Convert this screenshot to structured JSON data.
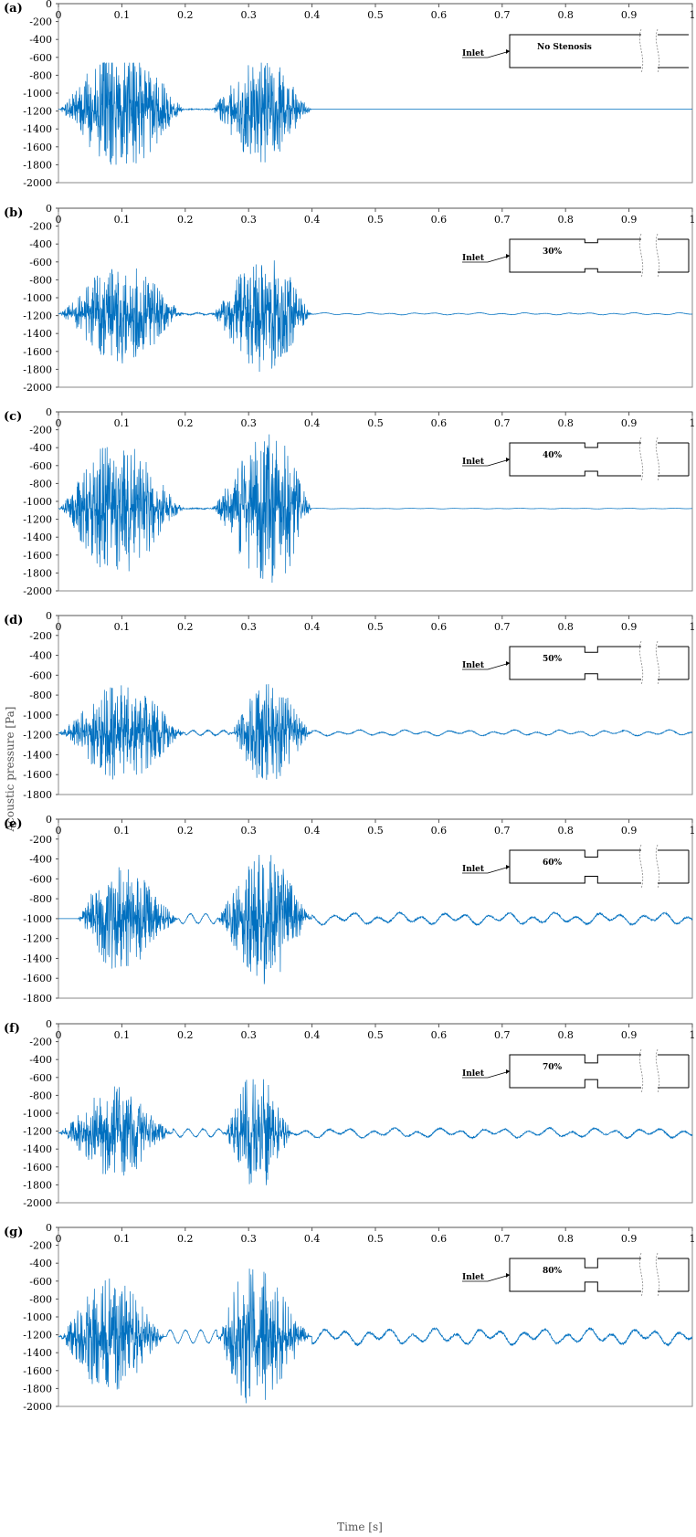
{
  "figure": {
    "xlabel": "Time [s]",
    "ylabel": "Acoustic pressure [Pa]",
    "inlet_label": "Inlet"
  },
  "chart_data": [
    {
      "type": "line",
      "panel_label": "(a)",
      "inset_label": "No Stenosis",
      "stenosis": 0,
      "xlim": [
        0,
        1
      ],
      "ylim": [
        -2000,
        0
      ],
      "x_ticks": [
        "0",
        "0.1",
        "0.2",
        "0.3",
        "0.4",
        "0.5",
        "0.6",
        "0.7",
        "0.8",
        "0.9",
        "1"
      ],
      "y_ticks": [
        "0",
        "-200",
        "-400",
        "-600",
        "-800",
        "-1000",
        "-1200",
        "-1400",
        "-1600",
        "-1800",
        "-2000"
      ],
      "baseline": -1180,
      "burst1": {
        "x": [
          0,
          0.2
        ],
        "peak_x": 0.1,
        "max_amplitude": 700
      },
      "burst2": {
        "x": [
          0.24,
          0.4
        ],
        "peak_x": 0.32,
        "max_amplitude": 600
      },
      "tail": {
        "x": [
          0.4,
          1.0
        ],
        "amplitude": 0
      },
      "extremes": {
        "min": -1900,
        "max": -660
      },
      "grid": false,
      "line_color": "#0070c0"
    },
    {
      "type": "line",
      "panel_label": "(b)",
      "inset_label": "30%",
      "stenosis": 30,
      "xlim": [
        0,
        1
      ],
      "ylim": [
        -2000,
        0
      ],
      "x_ticks": [
        "0",
        "0.1",
        "0.2",
        "0.3",
        "0.4",
        "0.5",
        "0.6",
        "0.7",
        "0.8",
        "0.9",
        "1"
      ],
      "y_ticks": [
        "0",
        "-200",
        "-400",
        "-600",
        "-800",
        "-1000",
        "-1200",
        "-1400",
        "-1600",
        "-1800",
        "-2000"
      ],
      "baseline": -1180,
      "burst1": {
        "x": [
          0,
          0.2
        ],
        "peak_x": 0.1,
        "max_amplitude": 560
      },
      "burst2": {
        "x": [
          0.24,
          0.4
        ],
        "peak_x": 0.33,
        "max_amplitude": 680
      },
      "tail": {
        "x": [
          0.4,
          1.0
        ],
        "amplitude": 12
      },
      "extremes": {
        "min": -1870,
        "max": -400
      },
      "grid": false,
      "line_color": "#0070c0"
    },
    {
      "type": "line",
      "panel_label": "(c)",
      "inset_label": "40%",
      "stenosis": 40,
      "xlim": [
        0,
        1
      ],
      "ylim": [
        -2000,
        0
      ],
      "x_ticks": [
        "0",
        "0.1",
        "0.2",
        "0.3",
        "0.4",
        "0.5",
        "0.6",
        "0.7",
        "0.8",
        "0.9",
        "1"
      ],
      "y_ticks": [
        "0",
        "-200",
        "-400",
        "-600",
        "-800",
        "-1000",
        "-1200",
        "-1400",
        "-1600",
        "-1800",
        "-2000"
      ],
      "baseline": -1080,
      "burst1": {
        "x": [
          0,
          0.2
        ],
        "peak_x": 0.09,
        "max_amplitude": 760
      },
      "burst2": {
        "x": [
          0.24,
          0.4
        ],
        "peak_x": 0.34,
        "max_amplitude": 880
      },
      "tail": {
        "x": [
          0.4,
          1.0
        ],
        "amplitude": 4
      },
      "extremes": {
        "min": -1960,
        "max": -250
      },
      "grid": false,
      "line_color": "#0070c0"
    },
    {
      "type": "line",
      "panel_label": "(d)",
      "inset_label": "50%",
      "stenosis": 50,
      "xlim": [
        0,
        1
      ],
      "ylim": [
        -1800,
        0
      ],
      "x_ticks": [
        "0",
        "0.1",
        "0.2",
        "0.3",
        "0.4",
        "0.5",
        "0.6",
        "0.7",
        "0.8",
        "0.9",
        "1"
      ],
      "y_ticks": [
        "0",
        "-200",
        "-400",
        "-600",
        "-800",
        "-1000",
        "-1200",
        "-1400",
        "-1600",
        "-1800"
      ],
      "baseline": -1180,
      "burst1": {
        "x": [
          0,
          0.2
        ],
        "peak_x": 0.1,
        "max_amplitude": 500
      },
      "burst2": {
        "x": [
          0.27,
          0.4
        ],
        "peak_x": 0.33,
        "max_amplitude": 520
      },
      "tail": {
        "x": [
          0.4,
          1.0
        ],
        "amplitude": 30
      },
      "extremes": {
        "min": -1730,
        "max": -660
      },
      "grid": false,
      "line_color": "#0070c0"
    },
    {
      "type": "line",
      "panel_label": "(e)",
      "inset_label": "60%",
      "stenosis": 60,
      "xlim": [
        0,
        1
      ],
      "ylim": [
        -1800,
        0
      ],
      "x_ticks": [
        "0",
        "0.1",
        "0.2",
        "0.3",
        "0.4",
        "0.5",
        "0.6",
        "0.7",
        "0.8",
        "0.9",
        "1"
      ],
      "y_ticks": [
        "0",
        "-200",
        "-400",
        "-600",
        "-800",
        "-1000",
        "-1200",
        "-1400",
        "-1600",
        "-1800"
      ],
      "baseline": -1000,
      "burst1": {
        "x": [
          0.03,
          0.19
        ],
        "peak_x": 0.09,
        "max_amplitude": 560
      },
      "burst2": {
        "x": [
          0.25,
          0.4
        ],
        "peak_x": 0.32,
        "max_amplitude": 700
      },
      "tail": {
        "x": [
          0.4,
          1.0
        ],
        "amplitude": 60
      },
      "extremes": {
        "min": -1660,
        "max": -220
      },
      "grid": false,
      "line_color": "#0070c0"
    },
    {
      "type": "line",
      "panel_label": "(f)",
      "inset_label": "70%",
      "stenosis": 70,
      "xlim": [
        0,
        1
      ],
      "ylim": [
        -2000,
        0
      ],
      "x_ticks": [
        "0",
        "0.1",
        "0.2",
        "0.3",
        "0.4",
        "0.5",
        "0.6",
        "0.7",
        "0.8",
        "0.9",
        "1"
      ],
      "y_ticks": [
        "0",
        "-200",
        "-400",
        "-600",
        "-800",
        "-1000",
        "-1200",
        "-1400",
        "-1600",
        "-1800",
        "-2000"
      ],
      "baseline": -1220,
      "burst1": {
        "x": [
          0,
          0.18
        ],
        "peak_x": 0.09,
        "max_amplitude": 520
      },
      "burst2": {
        "x": [
          0.26,
          0.37
        ],
        "peak_x": 0.31,
        "max_amplitude": 700
      },
      "tail": {
        "x": [
          0.37,
          1.0
        ],
        "amplitude": 55
      },
      "extremes": {
        "min": -1990,
        "max": -620
      },
      "grid": false,
      "line_color": "#0070c0"
    },
    {
      "type": "line",
      "panel_label": "(g)",
      "inset_label": "80%",
      "stenosis": 80,
      "xlim": [
        0,
        1
      ],
      "ylim": [
        -2000,
        0
      ],
      "x_ticks": [
        "0",
        "0.1",
        "0.2",
        "0.3",
        "0.4",
        "0.5",
        "0.6",
        "0.7",
        "0.8",
        "0.9",
        "1"
      ],
      "y_ticks": [
        "0",
        "-200",
        "-400",
        "-600",
        "-800",
        "-1000",
        "-1200",
        "-1400",
        "-1600",
        "-1800",
        "-2000"
      ],
      "baseline": -1220,
      "burst1": {
        "x": [
          0,
          0.17
        ],
        "peak_x": 0.08,
        "max_amplitude": 650
      },
      "burst2": {
        "x": [
          0.25,
          0.4
        ],
        "peak_x": 0.3,
        "max_amplitude": 800
      },
      "tail": {
        "x": [
          0.4,
          1.0
        ],
        "amplitude": 90
      },
      "extremes": {
        "min": -2000,
        "max": -400
      },
      "grid": false,
      "line_color": "#0070c0"
    }
  ]
}
